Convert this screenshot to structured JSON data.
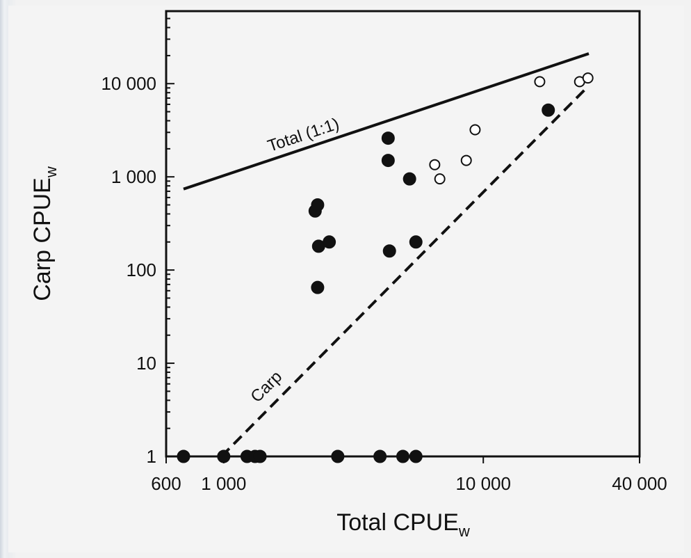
{
  "chart_data": {
    "type": "scatter",
    "title": "",
    "xlabel": "Total CPUE",
    "xlabel_sub": "w",
    "ylabel": "Carp CPUE",
    "ylabel_sub": "w",
    "x_scale": "log",
    "y_scale": "log",
    "xlim": [
      600,
      40000
    ],
    "ylim": [
      1,
      60000
    ],
    "x_ticks": [
      {
        "value": 600,
        "label": "600"
      },
      {
        "value": 1000,
        "label": "1 000"
      },
      {
        "value": 10000,
        "label": "10 000"
      },
      {
        "value": 40000,
        "label": "40 000"
      }
    ],
    "y_ticks": [
      {
        "value": 1,
        "label": "1"
      },
      {
        "value": 10,
        "label": "10"
      },
      {
        "value": 100,
        "label": "100"
      },
      {
        "value": 1000,
        "label": "1 000"
      },
      {
        "value": 10000,
        "label": "10 000"
      }
    ],
    "grid": false,
    "lines": [
      {
        "label": "Total (1:1)",
        "style": "solid",
        "color": "#111111",
        "x": [
          700,
          25500
        ],
        "y": [
          740,
          21000
        ]
      },
      {
        "label": "Carp",
        "style": "dashed",
        "color": "#111111",
        "x": [
          980,
          25000
        ],
        "y": [
          1,
          9000
        ]
      }
    ],
    "series": [
      {
        "marker": "filled-circle",
        "color": "#111111",
        "points": [
          {
            "x": 2250,
            "y": 430
          },
          {
            "x": 2300,
            "y": 500
          },
          {
            "x": 2320,
            "y": 180
          },
          {
            "x": 2550,
            "y": 200
          },
          {
            "x": 2300,
            "y": 65
          },
          {
            "x": 4300,
            "y": 2600
          },
          {
            "x": 4300,
            "y": 1500
          },
          {
            "x": 4350,
            "y": 160
          },
          {
            "x": 5200,
            "y": 950
          },
          {
            "x": 5500,
            "y": 200
          },
          {
            "x": 17800,
            "y": 5200
          },
          {
            "x": 700,
            "y": 1
          },
          {
            "x": 1000,
            "y": 1
          },
          {
            "x": 1230,
            "y": 1
          },
          {
            "x": 1320,
            "y": 1
          },
          {
            "x": 1380,
            "y": 1
          },
          {
            "x": 2750,
            "y": 1
          },
          {
            "x": 4000,
            "y": 1
          },
          {
            "x": 4900,
            "y": 1
          },
          {
            "x": 5500,
            "y": 1
          }
        ]
      },
      {
        "marker": "open-circle",
        "color": "#111111",
        "points": [
          {
            "x": 6500,
            "y": 1350
          },
          {
            "x": 6800,
            "y": 950
          },
          {
            "x": 8600,
            "y": 1500
          },
          {
            "x": 9300,
            "y": 3200
          },
          {
            "x": 16500,
            "y": 10500
          },
          {
            "x": 23500,
            "y": 10500
          },
          {
            "x": 25300,
            "y": 11500
          }
        ]
      }
    ]
  }
}
